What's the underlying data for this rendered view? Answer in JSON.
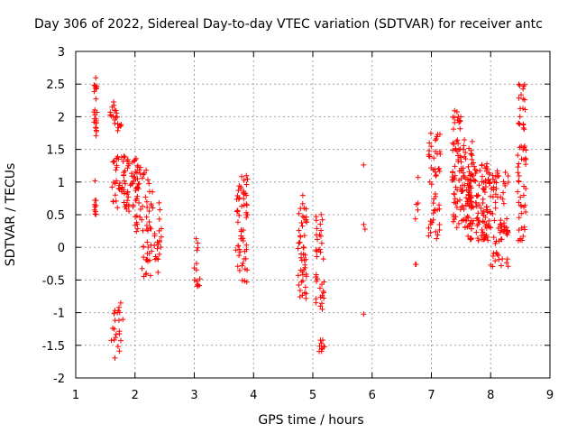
{
  "chart_data": {
    "type": "scatter",
    "title": "Day 306 of 2022, Sidereal Day-to-day VTEC variation (SDTVAR) for receiver antc",
    "xlabel": "GPS time / hours",
    "ylabel": "SDTVAR / TECUs",
    "xlim": [
      1,
      9
    ],
    "ylim": [
      -2,
      3
    ],
    "xticks": [
      "1",
      "2",
      "3",
      "4",
      "5",
      "6",
      "7",
      "8",
      "9"
    ],
    "yticks": [
      "-2",
      "-1.5",
      "-1",
      "-0.5",
      "0",
      "0.5",
      "1",
      "1.5",
      "2",
      "2.5",
      "3"
    ],
    "grid": true,
    "marker": "+",
    "color": "#ff0000",
    "clusters": [
      {
        "x": [
          1.3,
          1.36
        ],
        "y": [
          1.6,
          2.6
        ],
        "n": 24
      },
      {
        "x": [
          1.3,
          1.36
        ],
        "y": [
          0.5,
          1.05
        ],
        "n": 10
      },
      {
        "x": [
          1.58,
          1.7
        ],
        "y": [
          1.75,
          2.25
        ],
        "n": 14
      },
      {
        "x": [
          1.7,
          1.8
        ],
        "y": [
          1.75,
          1.9
        ],
        "n": 6
      },
      {
        "x": [
          1.6,
          1.8
        ],
        "y": [
          -1.7,
          -0.85
        ],
        "n": 22
      },
      {
        "x": [
          1.6,
          1.9
        ],
        "y": [
          0.6,
          1.4
        ],
        "n": 40
      },
      {
        "x": [
          1.8,
          2.1
        ],
        "y": [
          0.55,
          1.4
        ],
        "n": 45
      },
      {
        "x": [
          2.0,
          2.3
        ],
        "y": [
          0.2,
          1.2
        ],
        "n": 40
      },
      {
        "x": [
          2.1,
          2.4
        ],
        "y": [
          -0.45,
          0.1
        ],
        "n": 26
      },
      {
        "x": [
          2.3,
          2.45
        ],
        "y": [
          -0.2,
          0.75
        ],
        "n": 14
      },
      {
        "x": [
          3.0,
          3.1
        ],
        "y": [
          -0.6,
          0.15
        ],
        "n": 14
      },
      {
        "x": [
          3.7,
          3.9
        ],
        "y": [
          -0.55,
          1.1
        ],
        "n": 60
      },
      {
        "x": [
          4.75,
          4.9
        ],
        "y": [
          -0.8,
          0.85
        ],
        "n": 50
      },
      {
        "x": [
          5.05,
          5.2
        ],
        "y": [
          -0.95,
          0.6
        ],
        "n": 36
      },
      {
        "x": [
          5.1,
          5.2
        ],
        "y": [
          -1.6,
          -1.4
        ],
        "n": 10
      },
      {
        "x": [
          5.85,
          5.88
        ],
        "y": [
          -1.05,
          -1.0
        ],
        "n": 1
      },
      {
        "x": [
          5.85,
          5.88
        ],
        "y": [
          0.2,
          0.4
        ],
        "n": 2
      },
      {
        "x": [
          5.85,
          5.88
        ],
        "y": [
          1.25,
          1.27
        ],
        "n": 1
      },
      {
        "x": [
          6.72,
          6.78
        ],
        "y": [
          -0.28,
          -0.25
        ],
        "n": 2
      },
      {
        "x": [
          6.72,
          6.78
        ],
        "y": [
          0.4,
          1.25
        ],
        "n": 5
      },
      {
        "x": [
          6.95,
          7.15
        ],
        "y": [
          0.1,
          1.8
        ],
        "n": 50
      },
      {
        "x": [
          7.35,
          7.55
        ],
        "y": [
          1.8,
          2.1
        ],
        "n": 14
      },
      {
        "x": [
          7.35,
          7.7
        ],
        "y": [
          0.3,
          1.7
        ],
        "n": 110
      },
      {
        "x": [
          7.6,
          8.0
        ],
        "y": [
          0.1,
          1.3
        ],
        "n": 120
      },
      {
        "x": [
          8.0,
          8.3
        ],
        "y": [
          -0.3,
          1.3
        ],
        "n": 70
      },
      {
        "x": [
          8.45,
          8.6
        ],
        "y": [
          1.8,
          2.5
        ],
        "n": 20
      },
      {
        "x": [
          8.45,
          8.6
        ],
        "y": [
          0.1,
          1.6
        ],
        "n": 40
      }
    ]
  }
}
